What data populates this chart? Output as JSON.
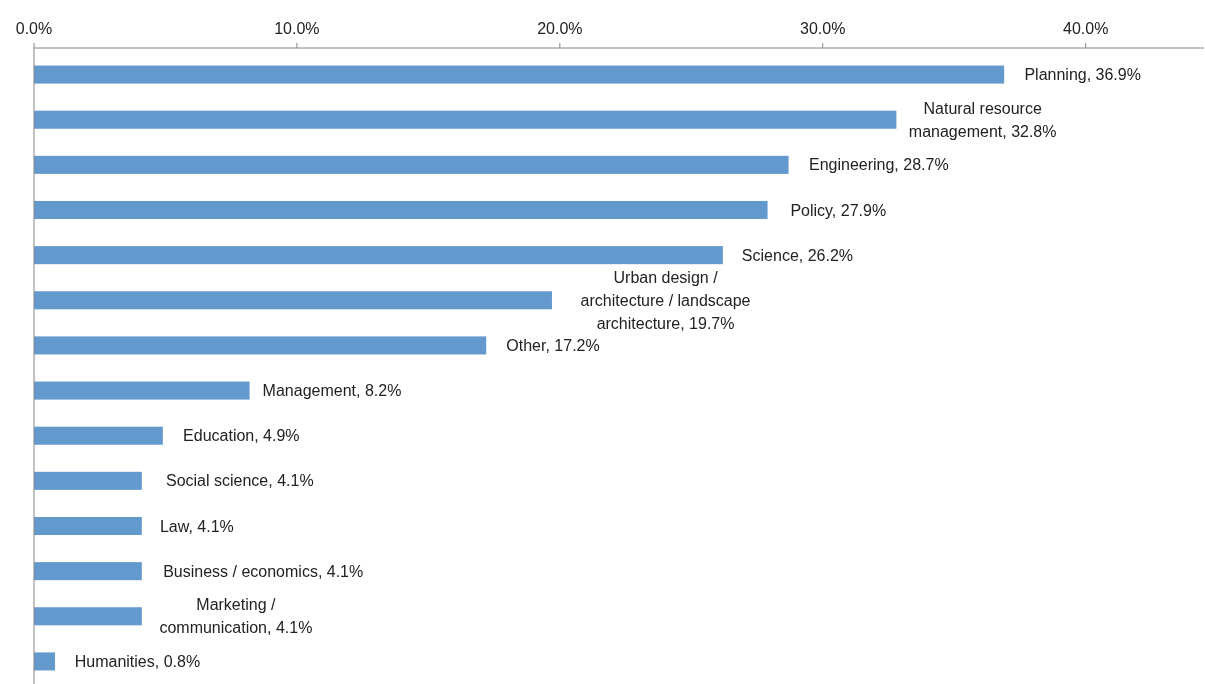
{
  "chart_data": {
    "type": "bar",
    "orientation": "horizontal",
    "categories": [
      null,
      null,
      null,
      null,
      null,
      null,
      null,
      null,
      null,
      null,
      null,
      null,
      null,
      null
    ],
    "values": [
      36.9,
      32.8,
      28.7,
      27.9,
      26.2,
      19.7,
      17.2,
      8.2,
      4.9,
      4.1,
      4.1,
      4.1,
      4.1,
      0.8
    ],
    "value_labels": [
      "Planning, 36.9%",
      "Natural resource management, 32.8%",
      "Engineering, 28.7%",
      "Policy, 27.9%",
      "Science, 26.2%",
      "Urban design / architecture / landscape architecture, 19.7%",
      "Other, 17.2%",
      "Management, 8.2%",
      "Education, 4.9%",
      "Social science, 4.1%",
      "Law, 4.1%",
      "Business / economics, 4.1%",
      "Marketing / communication, 4.1%",
      "Humanities, 0.8%"
    ],
    "color": "#6399cd",
    "xlim": [
      0,
      44.5
    ],
    "xticks": [
      {
        "value": 0,
        "label": "0.0%"
      },
      {
        "value": 10,
        "label": "10.0%"
      },
      {
        "value": 20,
        "label": "20.0%"
      },
      {
        "value": 30,
        "label": "30.0%"
      },
      {
        "value": 40,
        "label": "40.0%"
      }
    ],
    "grid": false
  }
}
